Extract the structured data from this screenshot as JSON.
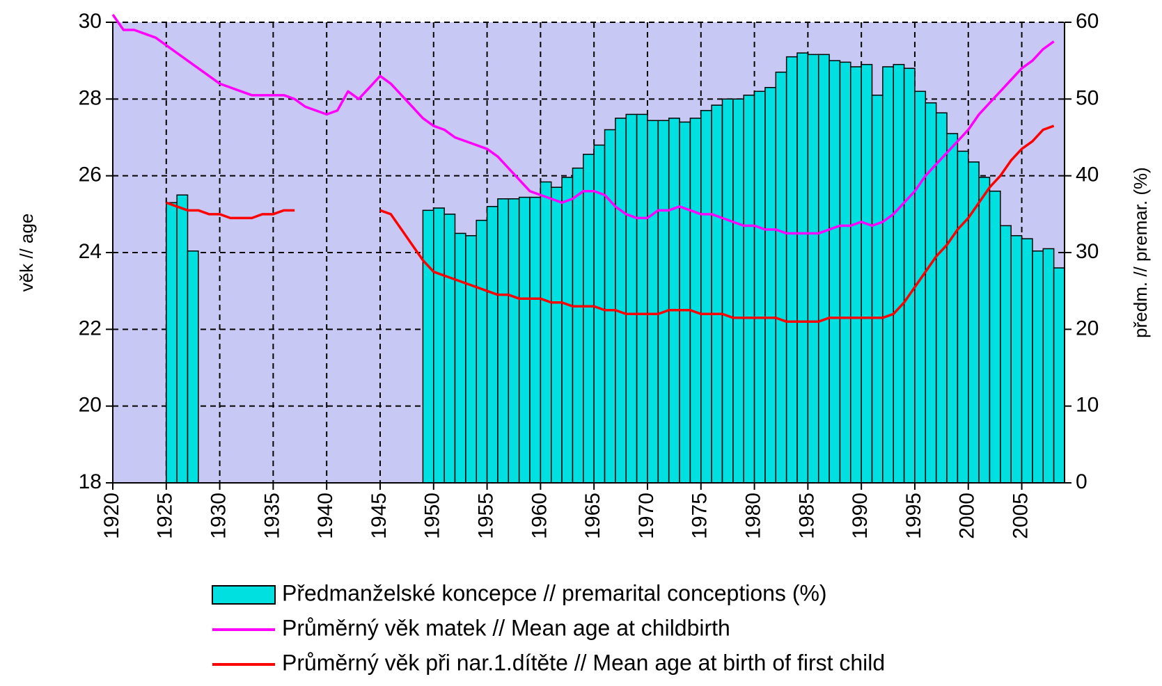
{
  "chart_data": {
    "type": "bar-line",
    "y_label": "věk // age",
    "y2_label": "předm. // premar. (%)",
    "x": [
      1920,
      1921,
      1922,
      1923,
      1924,
      1925,
      1926,
      1927,
      1928,
      1929,
      1930,
      1931,
      1932,
      1933,
      1934,
      1935,
      1936,
      1937,
      1938,
      1939,
      1940,
      1941,
      1942,
      1943,
      1944,
      1945,
      1946,
      1947,
      1948,
      1949,
      1950,
      1951,
      1952,
      1953,
      1954,
      1955,
      1956,
      1957,
      1958,
      1959,
      1960,
      1961,
      1962,
      1963,
      1964,
      1965,
      1966,
      1967,
      1968,
      1969,
      1970,
      1971,
      1972,
      1973,
      1974,
      1975,
      1976,
      1977,
      1978,
      1979,
      1980,
      1981,
      1982,
      1983,
      1984,
      1985,
      1986,
      1987,
      1988,
      1989,
      1990,
      1991,
      1992,
      1993,
      1994,
      1995,
      1996,
      1997,
      1998,
      1999,
      2000,
      2001,
      2002,
      2003,
      2004,
      2005,
      2006,
      2007,
      2008
    ],
    "xlim": [
      1920,
      2009
    ],
    "xticks": [
      1920,
      1925,
      1930,
      1935,
      1940,
      1945,
      1950,
      1955,
      1960,
      1965,
      1970,
      1975,
      1980,
      1985,
      1990,
      1995,
      2000,
      2005
    ],
    "ylim": [
      18,
      30
    ],
    "yticks": [
      18,
      20,
      22,
      24,
      26,
      28,
      30
    ],
    "y2lim": [
      0,
      60
    ],
    "y2ticks": [
      0,
      10,
      20,
      30,
      40,
      50,
      60
    ],
    "grid": true,
    "background": "#c8c8f4",
    "series": [
      {
        "name": "Předmanželské koncepce // premarital conceptions (%)",
        "type": "bar",
        "axis": "y2",
        "color": "#00e0e0",
        "values": [
          null,
          null,
          null,
          null,
          null,
          36.5,
          37.5,
          30.2,
          null,
          null,
          null,
          null,
          null,
          null,
          null,
          null,
          null,
          null,
          null,
          null,
          null,
          null,
          null,
          null,
          null,
          null,
          null,
          null,
          null,
          35.5,
          35.8,
          35,
          32.5,
          32.2,
          34.2,
          36,
          37,
          37,
          37.2,
          37.2,
          39.2,
          38.5,
          39.8,
          41,
          42.8,
          44,
          46,
          47.5,
          48,
          48,
          47.2,
          47.2,
          47.5,
          47,
          47.5,
          48.5,
          49.2,
          50,
          50,
          50.5,
          51,
          51.5,
          53.5,
          55.5,
          56,
          55.8,
          55.8,
          55,
          54.8,
          54.2,
          54.5,
          50.5,
          54.2,
          54.5,
          54,
          51,
          49.5,
          48.2,
          45.5,
          43.2,
          41.8,
          39.8,
          38,
          33.5,
          32.2,
          31.8,
          30.2,
          30.5,
          28
        ]
      },
      {
        "name": "Průměrný věk matek // Mean age at childbirth",
        "type": "line",
        "color": "#ff00ff",
        "values": [
          30.2,
          29.8,
          29.8,
          29.7,
          29.6,
          29.4,
          29.2,
          29.0,
          28.8,
          28.6,
          28.4,
          28.3,
          28.2,
          28.1,
          28.1,
          28.1,
          28.1,
          28.0,
          27.8,
          27.7,
          27.6,
          27.7,
          28.2,
          28.0,
          28.3,
          28.6,
          28.4,
          28.1,
          27.8,
          27.5,
          27.3,
          27.2,
          27.0,
          26.9,
          26.8,
          26.7,
          26.5,
          26.2,
          25.9,
          25.6,
          25.5,
          25.4,
          25.3,
          25.4,
          25.6,
          25.6,
          25.5,
          25.2,
          25.0,
          24.9,
          24.9,
          25.1,
          25.1,
          25.2,
          25.1,
          25.0,
          25.0,
          24.9,
          24.8,
          24.7,
          24.7,
          24.6,
          24.6,
          24.5,
          24.5,
          24.5,
          24.5,
          24.6,
          24.7,
          24.7,
          24.8,
          24.7,
          24.8,
          25.0,
          25.3,
          25.6,
          26.0,
          26.3,
          26.6,
          26.9,
          27.2,
          27.6,
          27.9,
          28.2,
          28.5,
          28.8,
          29.0,
          29.3,
          29.5
        ]
      },
      {
        "name": "Průměrný věk při nar.1.dítěte // Mean age at birth of first child",
        "type": "line",
        "color": "#ff0000",
        "values": [
          null,
          null,
          null,
          null,
          null,
          25.3,
          25.2,
          25.1,
          25.1,
          25.0,
          25.0,
          24.9,
          24.9,
          24.9,
          25.0,
          25.0,
          25.1,
          25.1,
          null,
          null,
          null,
          null,
          null,
          null,
          null,
          25.1,
          25.0,
          24.6,
          24.2,
          23.8,
          23.5,
          23.4,
          23.3,
          23.2,
          23.1,
          23.0,
          22.9,
          22.9,
          22.8,
          22.8,
          22.8,
          22.7,
          22.7,
          22.6,
          22.6,
          22.6,
          22.5,
          22.5,
          22.4,
          22.4,
          22.4,
          22.4,
          22.5,
          22.5,
          22.5,
          22.4,
          22.4,
          22.4,
          22.3,
          22.3,
          22.3,
          22.3,
          22.3,
          22.2,
          22.2,
          22.2,
          22.2,
          22.3,
          22.3,
          22.3,
          22.3,
          22.3,
          22.3,
          22.4,
          22.7,
          23.1,
          23.5,
          23.9,
          24.2,
          24.6,
          24.9,
          25.3,
          25.7,
          26.0,
          26.4,
          26.7,
          26.9,
          27.2,
          27.3
        ]
      }
    ]
  }
}
